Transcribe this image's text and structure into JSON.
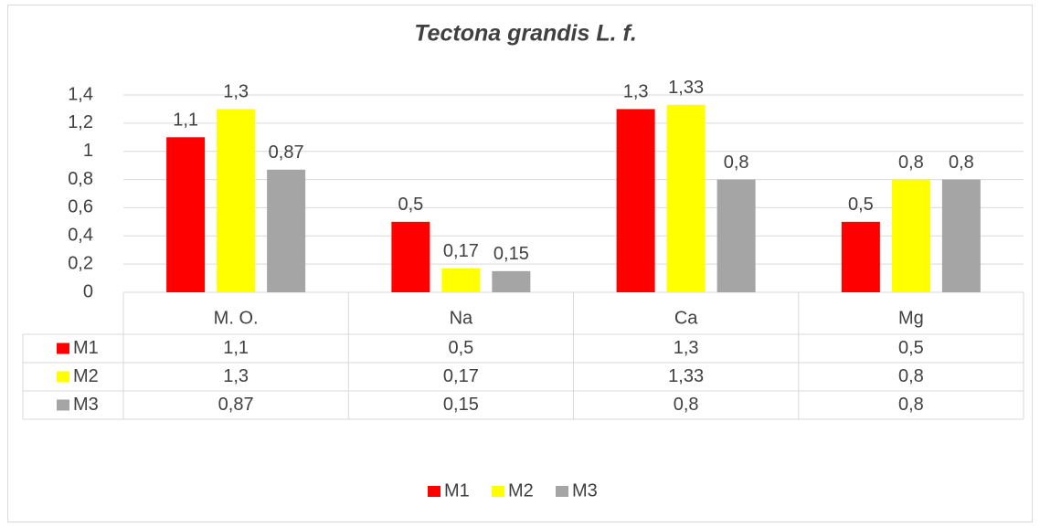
{
  "chart_data": {
    "type": "bar",
    "title": "Tectona grandis L. f.",
    "categories": [
      "M. O.",
      "Na",
      "Ca",
      "Mg"
    ],
    "series": [
      {
        "name": "M1",
        "color": "#ff0000",
        "values": [
          1.1,
          0.5,
          1.3,
          0.5
        ],
        "value_labels": [
          "1,1",
          "0,5",
          "1,3",
          "0,5"
        ]
      },
      {
        "name": "M2",
        "color": "#ffff00",
        "values": [
          1.3,
          0.17,
          1.33,
          0.8
        ],
        "value_labels": [
          "1,3",
          "0,17",
          "1,33",
          "0,8"
        ]
      },
      {
        "name": "M3",
        "color": "#a5a5a5",
        "values": [
          0.87,
          0.15,
          0.8,
          0.8
        ],
        "value_labels": [
          "0,87",
          "0,15",
          "0,8",
          "0,8"
        ]
      }
    ],
    "ylim": [
      0,
      1.4
    ],
    "yticks": [
      0,
      {
        "value": 0.2,
        "label": "0,2"
      },
      {
        "value": 0.4,
        "label": "0,4"
      },
      {
        "value": 0.6,
        "label": "0,6"
      },
      {
        "value": 0.8,
        "label": "0,8"
      },
      1,
      {
        "value": 1.2,
        "label": "1,2"
      },
      {
        "value": 1.4,
        "label": "1,4"
      }
    ],
    "grid": true,
    "legend": "bottom",
    "data_table": true
  }
}
